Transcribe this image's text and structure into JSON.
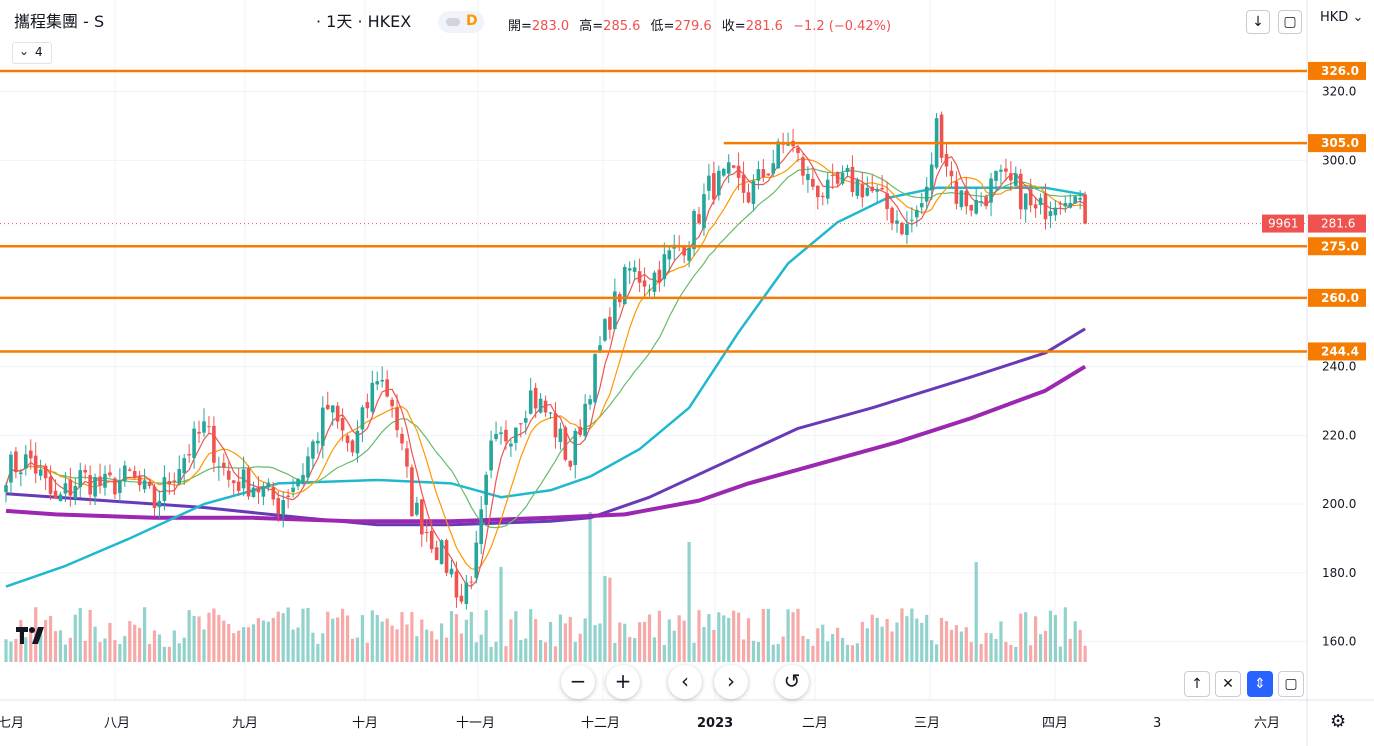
{
  "header": {
    "symbol": "攜程集團 - S",
    "interval": "· 1天 · HKEX",
    "badge": "D",
    "ohlc": [
      {
        "label": "開=",
        "value": "283.0"
      },
      {
        "label": "高=",
        "value": "285.6"
      },
      {
        "label": "低=",
        "value": "279.6"
      },
      {
        "label": "收=",
        "value": "281.6"
      }
    ],
    "change": "−1.2 (−0.42%)",
    "currency": "HKD",
    "legend_count": "4"
  },
  "toolbar": {
    "zoom_out": "−",
    "zoom_in": "+",
    "scroll_left": "‹",
    "scroll_right": "›",
    "reset": "↺"
  },
  "chart_data": {
    "type": "candlestick",
    "y_ticks": [
      "160.0",
      "180.0",
      "200.0",
      "220.0",
      "240.0",
      "300.0",
      "320.0"
    ],
    "ylim": [
      143,
      335
    ],
    "x_labels": [
      "七月",
      "八月",
      "九月",
      "十月",
      "十一月",
      "十二月",
      "2023",
      "二月",
      "三月",
      "四月",
      "3",
      "六月"
    ],
    "last_price": "281.6",
    "last_price_label": "9961",
    "horizontal_levels": [
      "326.0",
      "305.0",
      "275.0",
      "260.0",
      "244.4"
    ],
    "colors": {
      "up": "#26a69a",
      "down": "#ef5350",
      "level": "#f57c00",
      "ma_cyan": "#1fb8cf",
      "ma_violet": "#673ab7",
      "ma_purple": "#9c27b0",
      "ma_green": "#66bb6a",
      "ma_orange": "#ff9800",
      "ma_red": "#ef5350"
    },
    "anchors": [
      {
        "i": 0,
        "c": 210
      },
      {
        "i": 5,
        "c": 213
      },
      {
        "i": 10,
        "c": 200
      },
      {
        "i": 15,
        "c": 208
      },
      {
        "i": 20,
        "c": 205
      },
      {
        "i": 25,
        "c": 208
      },
      {
        "i": 30,
        "c": 200
      },
      {
        "i": 35,
        "c": 212
      },
      {
        "i": 40,
        "c": 222
      },
      {
        "i": 45,
        "c": 207
      },
      {
        "i": 50,
        "c": 206
      },
      {
        "i": 55,
        "c": 200
      },
      {
        "i": 60,
        "c": 210
      },
      {
        "i": 65,
        "c": 228
      },
      {
        "i": 70,
        "c": 215
      },
      {
        "i": 75,
        "c": 238
      },
      {
        "i": 78,
        "c": 230
      },
      {
        "i": 82,
        "c": 200
      },
      {
        "i": 86,
        "c": 190
      },
      {
        "i": 90,
        "c": 180
      },
      {
        "i": 92,
        "c": 172
      },
      {
        "i": 95,
        "c": 185
      },
      {
        "i": 98,
        "c": 215
      },
      {
        "i": 102,
        "c": 222
      },
      {
        "i": 106,
        "c": 232
      },
      {
        "i": 110,
        "c": 225
      },
      {
        "i": 114,
        "c": 212
      },
      {
        "i": 118,
        "c": 235
      },
      {
        "i": 122,
        "c": 255
      },
      {
        "i": 126,
        "c": 268
      },
      {
        "i": 130,
        "c": 265
      },
      {
        "i": 134,
        "c": 272
      },
      {
        "i": 138,
        "c": 278
      },
      {
        "i": 142,
        "c": 292
      },
      {
        "i": 146,
        "c": 295
      },
      {
        "i": 150,
        "c": 290
      },
      {
        "i": 154,
        "c": 298
      },
      {
        "i": 158,
        "c": 306
      },
      {
        "i": 162,
        "c": 294
      },
      {
        "i": 166,
        "c": 290
      },
      {
        "i": 170,
        "c": 294
      },
      {
        "i": 174,
        "c": 292
      },
      {
        "i": 178,
        "c": 286
      },
      {
        "i": 182,
        "c": 280
      },
      {
        "i": 186,
        "c": 290
      },
      {
        "i": 188,
        "c": 310
      },
      {
        "i": 192,
        "c": 290
      },
      {
        "i": 196,
        "c": 287
      },
      {
        "i": 200,
        "c": 294
      },
      {
        "i": 204,
        "c": 292
      },
      {
        "i": 208,
        "c": 284
      },
      {
        "i": 212,
        "c": 290
      },
      {
        "i": 215,
        "c": 292
      },
      {
        "i": 218,
        "c": 281.6
      }
    ]
  }
}
